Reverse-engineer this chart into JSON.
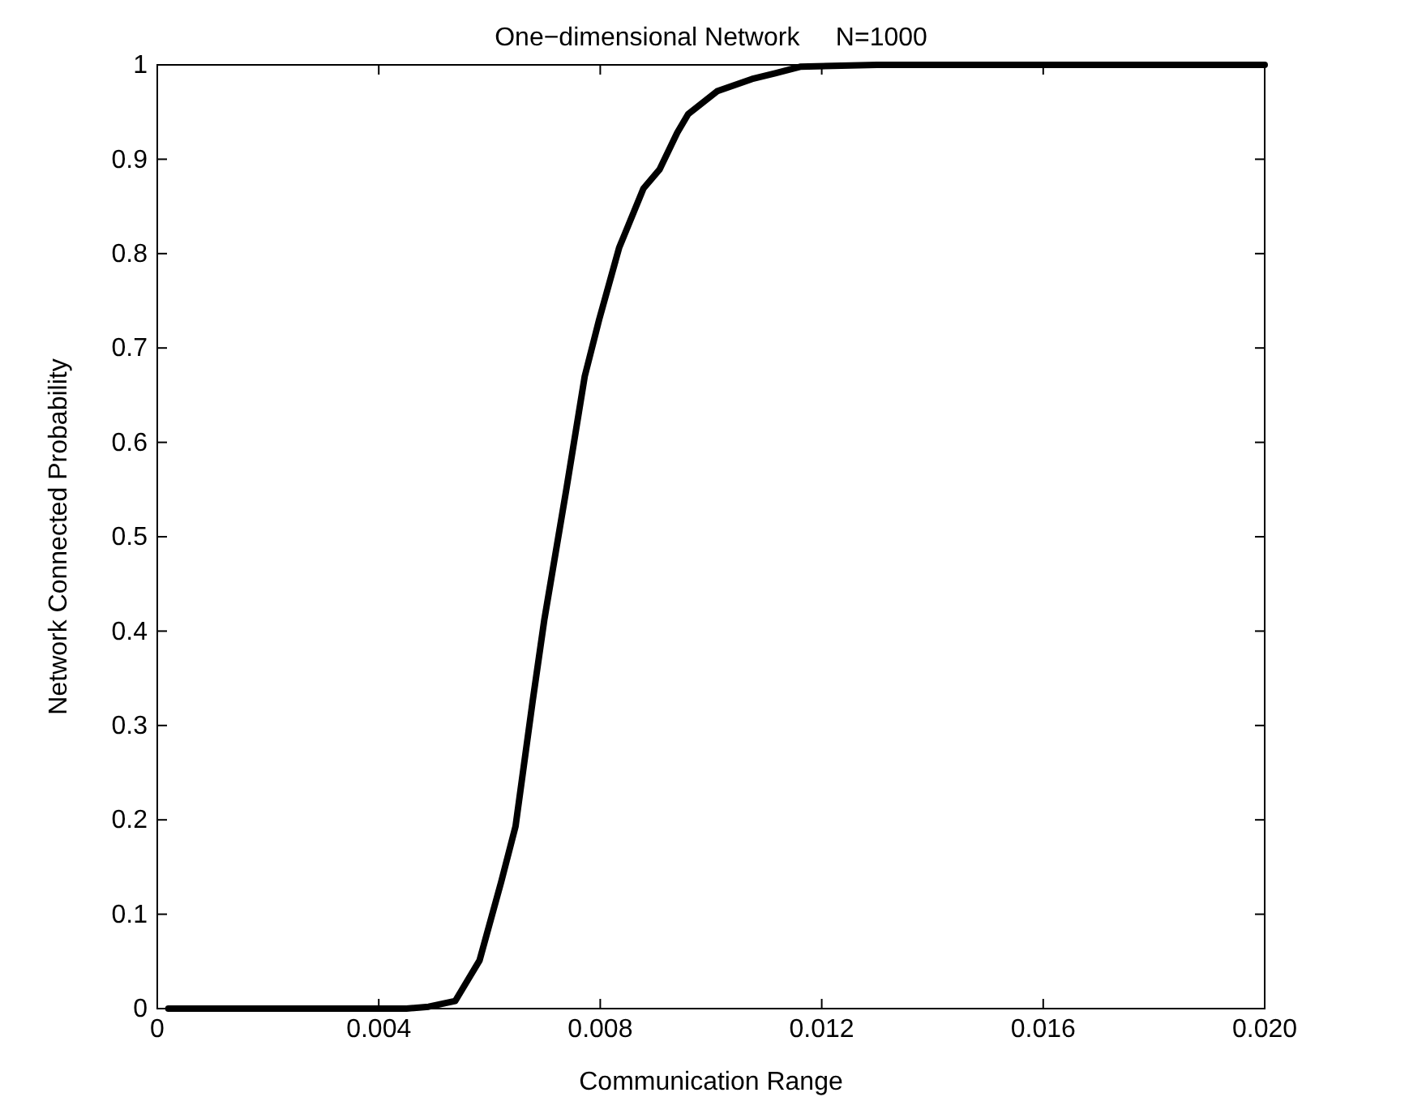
{
  "chart_data": {
    "type": "line",
    "title": "One−dimensional Network     N=1000",
    "xlabel": "Communication Range",
    "ylabel": "Network Connected Probability",
    "x": [
      0.0002,
      0.002,
      0.0045,
      0.0049,
      0.00538,
      0.00582,
      0.00621,
      0.00647,
      0.00678,
      0.00699,
      0.00739,
      0.00772,
      0.00798,
      0.00834,
      0.00878,
      0.00907,
      0.00939,
      0.00959,
      0.01011,
      0.01074,
      0.01116,
      0.01161,
      0.013,
      0.016,
      0.02
    ],
    "series": [
      {
        "color": "#000000",
        "values": [
          0,
          0,
          0,
          0.002,
          0.008,
          0.051,
          0.134,
          0.193,
          0.326,
          0.412,
          0.551,
          0.67,
          0.73,
          0.806,
          0.869,
          0.889,
          0.928,
          0.948,
          0.972,
          0.985,
          0.991,
          0.998,
          1,
          1,
          1
        ]
      }
    ],
    "xlim": [
      0,
      0.02
    ],
    "ylim": [
      0,
      1
    ],
    "xticks": [
      0,
      0.004,
      0.008,
      0.012,
      0.016,
      {
        "value": 0.02,
        "label": "0.020"
      }
    ],
    "yticks": [
      0,
      0.1,
      0.2,
      0.3,
      0.4,
      0.5,
      0.6,
      0.7,
      0.8,
      0.9,
      1
    ],
    "grid": false,
    "marker": "none",
    "line_style": "solid"
  }
}
